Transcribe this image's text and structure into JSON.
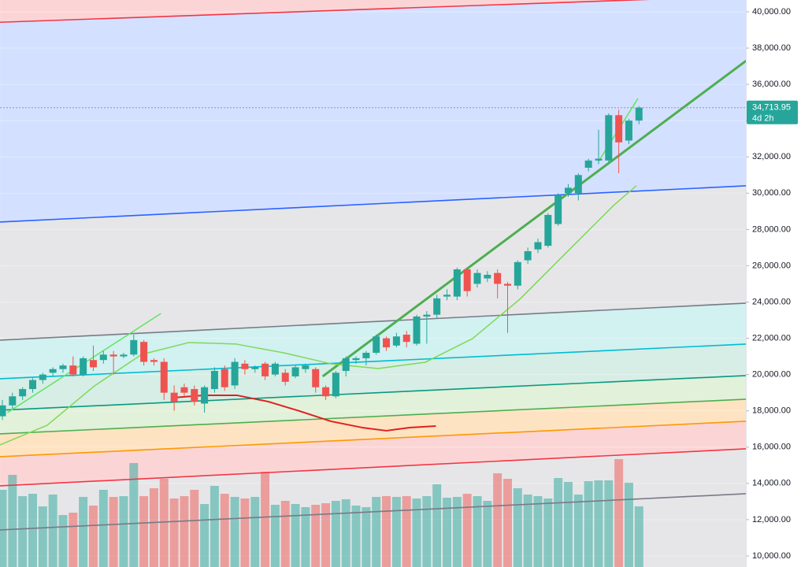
{
  "chart_data": {
    "type": "candlestick",
    "ylim": [
      9390,
      40650
    ],
    "yticks": [
      {
        "value": 10000,
        "label": "10,000.00"
      },
      {
        "value": 12000,
        "label": "12,000.00"
      },
      {
        "value": 14000,
        "label": "14,000.00"
      },
      {
        "value": 16000,
        "label": "16,000.00"
      },
      {
        "value": 18000,
        "label": "18,000.00"
      },
      {
        "value": 20000,
        "label": "20,000.00"
      },
      {
        "value": 22000,
        "label": "22,000.00"
      },
      {
        "value": 24000,
        "label": "24,000.00"
      },
      {
        "value": 26000,
        "label": "26,000.00"
      },
      {
        "value": 28000,
        "label": "28,000.00"
      },
      {
        "value": 30000,
        "label": "30,000.00"
      },
      {
        "value": 32000,
        "label": "32,000.00"
      },
      {
        "value": 34000,
        "label": "34,000.00"
      },
      {
        "value": 36000,
        "label": "36,000.00"
      },
      {
        "value": 38000,
        "label": "38,000.00"
      },
      {
        "value": 40000,
        "label": "40,000.00"
      }
    ],
    "grid": true,
    "up_color": "#26a69a",
    "down_color": "#ef5350",
    "open": [
      17700,
      18300,
      18800,
      19200,
      19700,
      20100,
      20300,
      20500,
      20000,
      20800,
      20800,
      21100,
      21000,
      21100,
      21800,
      20800,
      20700,
      19000,
      19300,
      19200,
      18400,
      19200,
      20300,
      19400,
      20600,
      20300,
      20600,
      20000,
      20100,
      19900,
      20300,
      20300,
      19300,
      18800,
      20200,
      20800,
      20900,
      21200,
      22000,
      21600,
      22200,
      21700,
      23200,
      23300,
      24300,
      24300,
      25800,
      25000,
      25300,
      25600,
      25000,
      24900,
      26300,
      26900,
      27100,
      28300,
      30000,
      30000,
      31400,
      31800,
      31800,
      34300,
      32900,
      34000
    ],
    "high": [
      18600,
      19000,
      19300,
      19800,
      20100,
      20400,
      20600,
      21000,
      21000,
      21600,
      21300,
      21300,
      21200,
      22200,
      21900,
      20900,
      20900,
      19400,
      19500,
      19400,
      19400,
      20400,
      20500,
      20900,
      20800,
      20500,
      20700,
      20700,
      20300,
      20500,
      20600,
      20400,
      19400,
      20200,
      21000,
      21000,
      21300,
      22200,
      22100,
      22300,
      22400,
      23300,
      23500,
      24400,
      24700,
      25900,
      25900,
      25800,
      25700,
      25800,
      25100,
      26300,
      27000,
      27500,
      28900,
      30000,
      30500,
      31100,
      31900,
      33500,
      34400,
      34600,
      34100,
      34800
    ],
    "low": [
      17500,
      18100,
      18600,
      19000,
      19500,
      19900,
      20100,
      19900,
      19900,
      20200,
      20600,
      20000,
      20900,
      21000,
      20500,
      20500,
      18600,
      18000,
      18800,
      18300,
      17900,
      19000,
      19100,
      19200,
      20000,
      20100,
      19700,
      19900,
      19400,
      19800,
      20100,
      19000,
      18600,
      18700,
      19900,
      20600,
      20500,
      21100,
      21300,
      21500,
      21500,
      21600,
      21700,
      23100,
      24100,
      24100,
      24300,
      24800,
      25100,
      24200,
      22300,
      24700,
      26100,
      26700,
      27000,
      28200,
      29800,
      29600,
      31200,
      31600,
      31700,
      31100,
      32700,
      33800
    ],
    "close": [
      18300,
      18800,
      19200,
      19700,
      20000,
      20300,
      20500,
      20000,
      20900,
      20400,
      21100,
      21000,
      21100,
      21900,
      20700,
      20700,
      19000,
      18500,
      19000,
      18500,
      19300,
      20200,
      19300,
      20700,
      20300,
      20400,
      19900,
      20600,
      19600,
      20400,
      20500,
      19300,
      18800,
      20100,
      20900,
      20900,
      21200,
      22100,
      21500,
      22100,
      21800,
      23200,
      23300,
      24200,
      24400,
      25800,
      24600,
      25600,
      25500,
      25000,
      24900,
      26200,
      26800,
      27300,
      28800,
      29900,
      30300,
      31000,
      31800,
      31900,
      34300,
      32800,
      34000,
      34713.95
    ],
    "volume": [
      98,
      117,
      90,
      93,
      77,
      92,
      66,
      69,
      89,
      78,
      98,
      89,
      90,
      132,
      90,
      100,
      112,
      87,
      90,
      98,
      80,
      103,
      93,
      89,
      87,
      89,
      121,
      79,
      84,
      80,
      76,
      79,
      81,
      84,
      86,
      78,
      76,
      89,
      90,
      89,
      90,
      87,
      90,
      105,
      88,
      89,
      93,
      90,
      84,
      119,
      112,
      100,
      92,
      90,
      87,
      113,
      108,
      92,
      109,
      110,
      110,
      137,
      107,
      77
    ],
    "channel_lines": [
      {
        "color": "#f23645",
        "x": [
          -0.23,
          73.58
        ],
        "values": [
          39424,
          40870
        ]
      },
      {
        "color": "#2962ff",
        "x": [
          -0.23,
          73.58
        ],
        "values": [
          28408,
          30405
        ]
      },
      {
        "color": "#787b86",
        "x": [
          -0.23,
          73.58
        ],
        "values": [
          21896,
          23937
        ]
      },
      {
        "color": "#00bcd4",
        "x": [
          -0.23,
          73.58
        ],
        "values": [
          19768,
          21678
        ]
      },
      {
        "color": "#089981",
        "x": [
          -0.23,
          73.58
        ],
        "values": [
          18033,
          19942
        ]
      },
      {
        "color": "#4caf50",
        "x": [
          -0.23,
          73.58
        ],
        "values": [
          16730,
          18640
        ]
      },
      {
        "color": "#ff9800",
        "x": [
          -0.23,
          73.58
        ],
        "values": [
          15471,
          17424
        ]
      },
      {
        "color": "#f23645",
        "x": [
          -0.23,
          73.58
        ],
        "values": [
          13864,
          15905
        ]
      },
      {
        "color": "#787b86",
        "x": [
          -0.23,
          73.58
        ],
        "values": [
          11433,
          13430
        ]
      }
    ],
    "band_colors": [
      "#fbd5d6",
      "#d4e0ff",
      "#e6e6e8",
      "#d2f1f1",
      "#d6eee5",
      "#e2f1d9",
      "#fde3c2",
      "#fbd5d6",
      "#e6e6e8",
      "#e6e6e8"
    ],
    "overlays": [
      {
        "color": "#4caf50",
        "width": 3,
        "x": [
          31.7,
          73.6
        ],
        "values": [
          19900,
          37300
        ]
      },
      {
        "color": "#5ee65e",
        "width": 1.5,
        "x": [
          0.5,
          15.7
        ],
        "values": [
          17900,
          23370
        ]
      },
      {
        "color": "#5ee65e",
        "width": 1.5,
        "x": [
          59,
          62.9
        ],
        "values": [
          31750,
          35224
        ]
      },
      {
        "color": "#7ed957",
        "width": 1.5,
        "x": [
          -0.23,
          4.44,
          9.12,
          13.8,
          18.47,
          23.15,
          27.83,
          32.5,
          37.18,
          41.86,
          46.53,
          51.21,
          55.88,
          60.56,
          62.74
        ],
        "values": [
          16122,
          17207,
          19378,
          21114,
          21766,
          21680,
          21201,
          20594,
          20333,
          20680,
          21983,
          24154,
          26759,
          29364,
          30405
        ]
      },
      {
        "color": "#e02020",
        "width": 2,
        "x": [
          16.9,
          20.0,
          23.2,
          26.3,
          29.4,
          32.5,
          35.6,
          38.0,
          40.3,
          42.9
        ],
        "values": [
          18727,
          18857,
          18857,
          18510,
          17989,
          17425,
          17077,
          16904,
          17077,
          17164
        ]
      }
    ],
    "last_price": {
      "value": 34713.95,
      "label": "34,713.95",
      "countdown": "4d 2h"
    }
  }
}
